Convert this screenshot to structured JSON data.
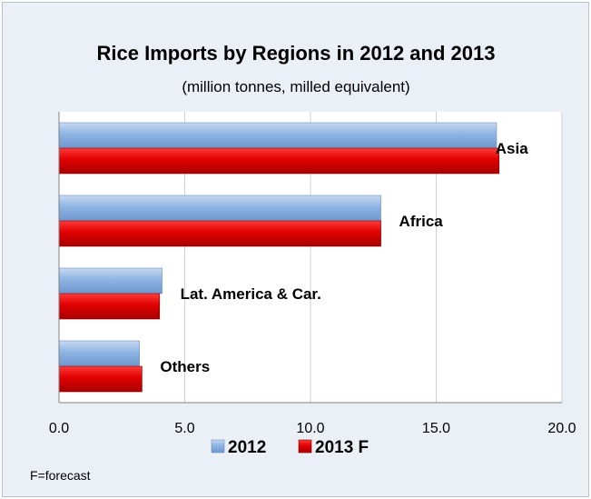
{
  "chart_data": {
    "type": "bar",
    "orientation": "horizontal",
    "title": "Rice Imports by Regions in 2012 and 2013",
    "subtitle": "(million tonnes, milled equivalent)",
    "categories": [
      "Asia",
      "Africa",
      "Lat. America & Car.",
      "Others"
    ],
    "series": [
      {
        "name": "2012",
        "values": [
          17.4,
          12.8,
          4.1,
          3.2
        ],
        "color": "#8eb4e3"
      },
      {
        "name": "2013 F",
        "values": [
          17.5,
          12.8,
          4.0,
          3.3
        ],
        "color": "#e00000"
      }
    ],
    "xlim": [
      0,
      20
    ],
    "x_ticks": [
      "0.0",
      "5.0",
      "10.0",
      "15.0",
      "20.0"
    ],
    "grid": "vertical",
    "legend_position": "bottom",
    "note": "F=forecast"
  }
}
